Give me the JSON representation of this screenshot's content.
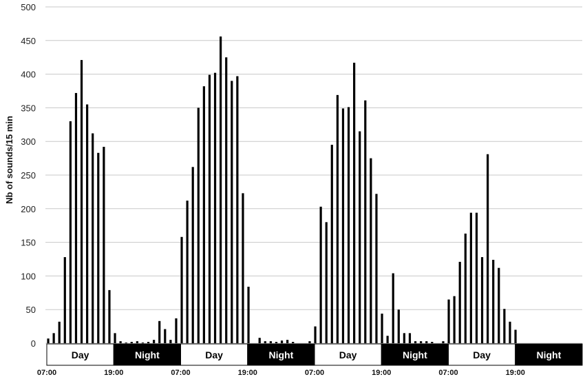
{
  "chart_data": {
    "type": "bar",
    "ylabel": "Nb of sounds/15 min",
    "ylim": [
      0,
      500
    ],
    "yticks": [
      0,
      50,
      100,
      150,
      200,
      250,
      300,
      350,
      400,
      450,
      500
    ],
    "grid": "horizontal",
    "colors": {
      "bar": "#000000",
      "grid": "#c8c8c8",
      "day_band": "#ffffff",
      "night_band": "#000000"
    },
    "bands": [
      {
        "label": "Day",
        "type": "day"
      },
      {
        "label": "Night",
        "type": "night"
      },
      {
        "label": "Day",
        "type": "day"
      },
      {
        "label": "Night",
        "type": "night"
      },
      {
        "label": "Day",
        "type": "day"
      },
      {
        "label": "Night",
        "type": "night"
      },
      {
        "label": "Day",
        "type": "day"
      },
      {
        "label": "Night",
        "type": "night"
      }
    ],
    "time_labels": [
      "07:00",
      "19:00",
      "07:00",
      "19:00",
      "07:00",
      "19:00",
      "07:00",
      "19:00"
    ],
    "values": [
      7,
      15,
      32,
      128,
      330,
      372,
      421,
      355,
      312,
      283,
      292,
      79,
      15,
      3,
      1,
      2,
      3,
      1,
      2,
      5,
      33,
      21,
      5,
      37,
      158,
      212,
      262,
      350,
      382,
      399,
      402,
      456,
      425,
      390,
      397,
      223,
      84,
      0,
      8,
      3,
      3,
      2,
      4,
      5,
      2,
      0,
      0,
      3,
      25,
      203,
      180,
      295,
      369,
      349,
      351,
      417,
      315,
      361,
      275,
      222,
      44,
      11,
      104,
      50,
      15,
      15,
      3,
      3,
      3,
      2,
      0,
      3,
      65,
      70,
      121,
      163,
      194,
      194,
      128,
      281,
      124,
      112,
      51,
      32,
      20,
      0,
      0,
      0,
      0,
      0,
      0,
      0,
      0,
      0,
      0,
      0
    ]
  }
}
